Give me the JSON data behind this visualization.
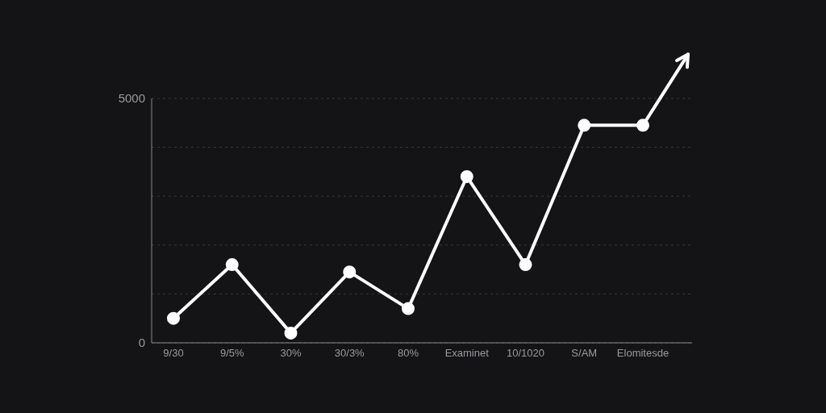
{
  "chart_data": {
    "type": "line",
    "categories": [
      "9/30",
      "9/5%",
      "30%",
      "30/3%",
      "80%",
      "Examinet",
      "10/1020",
      "S/AM",
      "Elomitesde"
    ],
    "series": [
      {
        "color": "#ffffff",
        "values": [
          500,
          1600,
          200,
          1450,
          700,
          3400,
          1600,
          4450,
          4450
        ]
      }
    ],
    "ylim": [
      0,
      5000
    ],
    "yticks": [
      0,
      {
        "value": 1000,
        "label": null
      },
      {
        "value": 2000,
        "label": null
      },
      {
        "value": 3000,
        "label": null
      },
      {
        "value": 4000,
        "label": null
      },
      5000
    ],
    "grid": "y",
    "marker": "circle",
    "line_style": "solid"
  }
}
